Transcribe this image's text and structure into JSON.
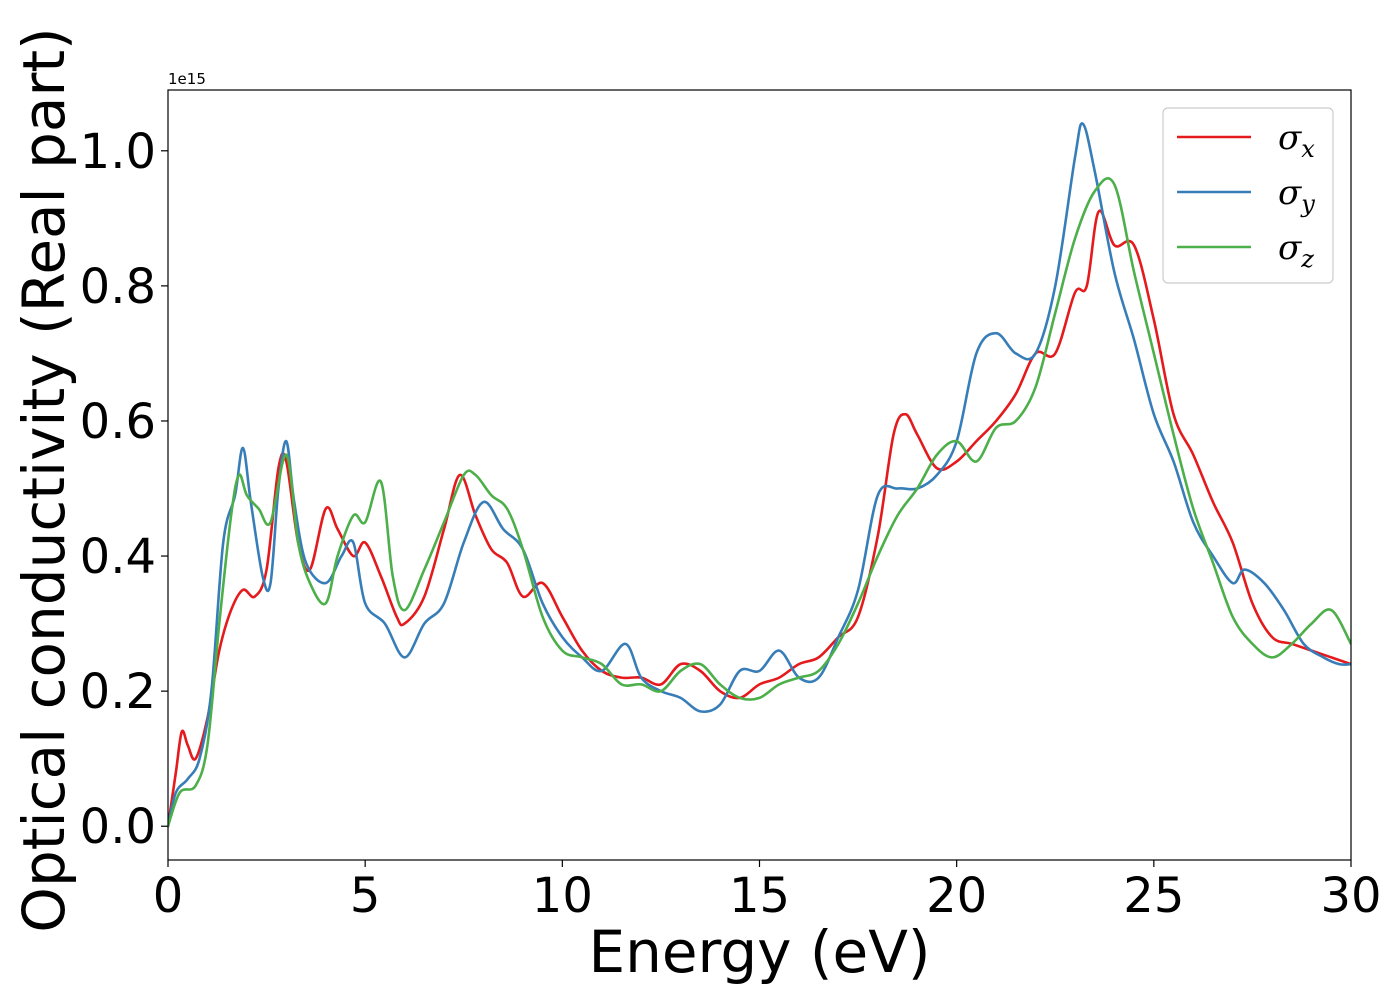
{
  "chart_data": {
    "type": "line",
    "xlabel": "Energy (eV)",
    "ylabel": "Optical conductivity (Real part)",
    "y_offset_label": "1e15",
    "xlim": [
      0,
      30
    ],
    "ylim": [
      -0.05,
      1.09
    ],
    "x_ticks": [
      0,
      5,
      10,
      15,
      20,
      25,
      30
    ],
    "x_tick_labels": [
      "0",
      "5",
      "10",
      "15",
      "20",
      "25",
      "30"
    ],
    "y_ticks": [
      0.0,
      0.2,
      0.4,
      0.6,
      0.8,
      1.0
    ],
    "y_tick_labels": [
      "0.0",
      "0.2",
      "0.4",
      "0.6",
      "0.8",
      "1.0"
    ],
    "grid": false,
    "legend_position": "top-right",
    "series": [
      {
        "name": "σx",
        "legend_symbol": "σ",
        "legend_sub": "x",
        "color": "#e41a1c",
        "x": [
          0,
          0.2,
          0.35,
          0.5,
          0.7,
          1.0,
          1.3,
          1.6,
          1.9,
          2.2,
          2.5,
          2.8,
          3.0,
          3.3,
          3.6,
          4.0,
          4.3,
          4.7,
          5.0,
          5.4,
          5.8,
          6.0,
          6.5,
          7.0,
          7.4,
          7.8,
          8.2,
          8.6,
          9.0,
          9.5,
          10.0,
          10.5,
          11.0,
          11.5,
          12.0,
          12.5,
          13.0,
          13.5,
          14.0,
          14.5,
          15.0,
          15.5,
          16.0,
          16.5,
          17.0,
          17.5,
          18.0,
          18.4,
          18.7,
          19.0,
          19.5,
          20.0,
          20.5,
          21.0,
          21.5,
          22.0,
          22.5,
          23.0,
          23.3,
          23.6,
          24.0,
          24.5,
          25.0,
          25.5,
          26.0,
          26.5,
          27.0,
          27.5,
          28.0,
          28.5,
          29.0,
          29.5,
          30.0
        ],
        "y": [
          0.0,
          0.08,
          0.14,
          0.12,
          0.1,
          0.16,
          0.26,
          0.32,
          0.35,
          0.34,
          0.38,
          0.53,
          0.54,
          0.42,
          0.38,
          0.47,
          0.44,
          0.4,
          0.42,
          0.37,
          0.31,
          0.3,
          0.34,
          0.44,
          0.52,
          0.46,
          0.41,
          0.39,
          0.34,
          0.36,
          0.31,
          0.26,
          0.23,
          0.22,
          0.22,
          0.21,
          0.24,
          0.23,
          0.2,
          0.19,
          0.21,
          0.22,
          0.24,
          0.25,
          0.28,
          0.31,
          0.43,
          0.58,
          0.61,
          0.58,
          0.53,
          0.54,
          0.57,
          0.6,
          0.64,
          0.7,
          0.7,
          0.79,
          0.8,
          0.91,
          0.86,
          0.86,
          0.75,
          0.61,
          0.55,
          0.48,
          0.42,
          0.33,
          0.28,
          0.27,
          0.26,
          0.25,
          0.24
        ]
      },
      {
        "name": "σy",
        "legend_symbol": "σ",
        "legend_sub": "y",
        "color": "#377eb8",
        "x": [
          0,
          0.2,
          0.5,
          0.8,
          1.1,
          1.4,
          1.7,
          1.9,
          2.1,
          2.4,
          2.6,
          2.8,
          3.0,
          3.2,
          3.5,
          4.0,
          4.4,
          4.7,
          5.0,
          5.5,
          6.0,
          6.5,
          7.0,
          7.5,
          8.0,
          8.5,
          9.0,
          9.5,
          10.0,
          10.5,
          11.0,
          11.6,
          12.0,
          12.5,
          13.0,
          13.5,
          14.0,
          14.5,
          15.0,
          15.5,
          16.0,
          16.5,
          17.0,
          17.5,
          18.0,
          18.5,
          19.0,
          19.5,
          20.0,
          20.5,
          21.0,
          21.5,
          22.0,
          22.5,
          23.0,
          23.2,
          23.5,
          24.0,
          24.5,
          25.0,
          25.5,
          26.0,
          26.5,
          27.0,
          27.3,
          27.8,
          28.3,
          28.8,
          29.3,
          29.7,
          30.0
        ],
        "y": [
          0.0,
          0.05,
          0.07,
          0.1,
          0.2,
          0.42,
          0.49,
          0.56,
          0.48,
          0.37,
          0.36,
          0.5,
          0.57,
          0.48,
          0.39,
          0.36,
          0.4,
          0.42,
          0.33,
          0.3,
          0.25,
          0.3,
          0.33,
          0.42,
          0.48,
          0.44,
          0.41,
          0.33,
          0.28,
          0.25,
          0.23,
          0.27,
          0.22,
          0.2,
          0.19,
          0.17,
          0.18,
          0.23,
          0.23,
          0.26,
          0.22,
          0.22,
          0.28,
          0.35,
          0.49,
          0.5,
          0.5,
          0.52,
          0.57,
          0.7,
          0.73,
          0.7,
          0.7,
          0.8,
          0.99,
          1.04,
          0.97,
          0.82,
          0.72,
          0.61,
          0.54,
          0.45,
          0.4,
          0.36,
          0.38,
          0.36,
          0.32,
          0.27,
          0.25,
          0.24,
          0.24
        ]
      },
      {
        "name": "σz",
        "legend_symbol": "σ",
        "legend_sub": "z",
        "color": "#4daf4a",
        "x": [
          0,
          0.3,
          0.7,
          1.0,
          1.3,
          1.6,
          1.8,
          2.0,
          2.3,
          2.6,
          3.0,
          3.3,
          3.6,
          4.0,
          4.3,
          4.7,
          5.0,
          5.4,
          5.7,
          6.0,
          6.5,
          7.0,
          7.5,
          7.8,
          8.2,
          8.6,
          9.0,
          9.5,
          10.0,
          10.5,
          11.0,
          11.5,
          12.0,
          12.5,
          13.0,
          13.5,
          14.0,
          14.5,
          15.0,
          15.5,
          16.0,
          16.5,
          17.0,
          17.5,
          18.0,
          18.5,
          19.0,
          19.5,
          20.0,
          20.5,
          21.0,
          21.5,
          22.0,
          22.5,
          23.0,
          23.5,
          24.0,
          24.5,
          25.0,
          25.5,
          26.0,
          26.5,
          27.0,
          27.5,
          28.0,
          28.5,
          29.0,
          29.5,
          30.0
        ],
        "y": [
          0.0,
          0.05,
          0.06,
          0.12,
          0.3,
          0.46,
          0.52,
          0.49,
          0.47,
          0.45,
          0.55,
          0.42,
          0.36,
          0.33,
          0.4,
          0.46,
          0.45,
          0.51,
          0.37,
          0.32,
          0.38,
          0.45,
          0.52,
          0.52,
          0.49,
          0.47,
          0.41,
          0.31,
          0.26,
          0.25,
          0.24,
          0.21,
          0.21,
          0.2,
          0.23,
          0.24,
          0.21,
          0.19,
          0.19,
          0.21,
          0.22,
          0.23,
          0.27,
          0.33,
          0.4,
          0.46,
          0.5,
          0.55,
          0.57,
          0.54,
          0.59,
          0.6,
          0.65,
          0.76,
          0.87,
          0.94,
          0.95,
          0.82,
          0.7,
          0.58,
          0.47,
          0.39,
          0.31,
          0.27,
          0.25,
          0.27,
          0.3,
          0.32,
          0.27
        ]
      }
    ]
  }
}
